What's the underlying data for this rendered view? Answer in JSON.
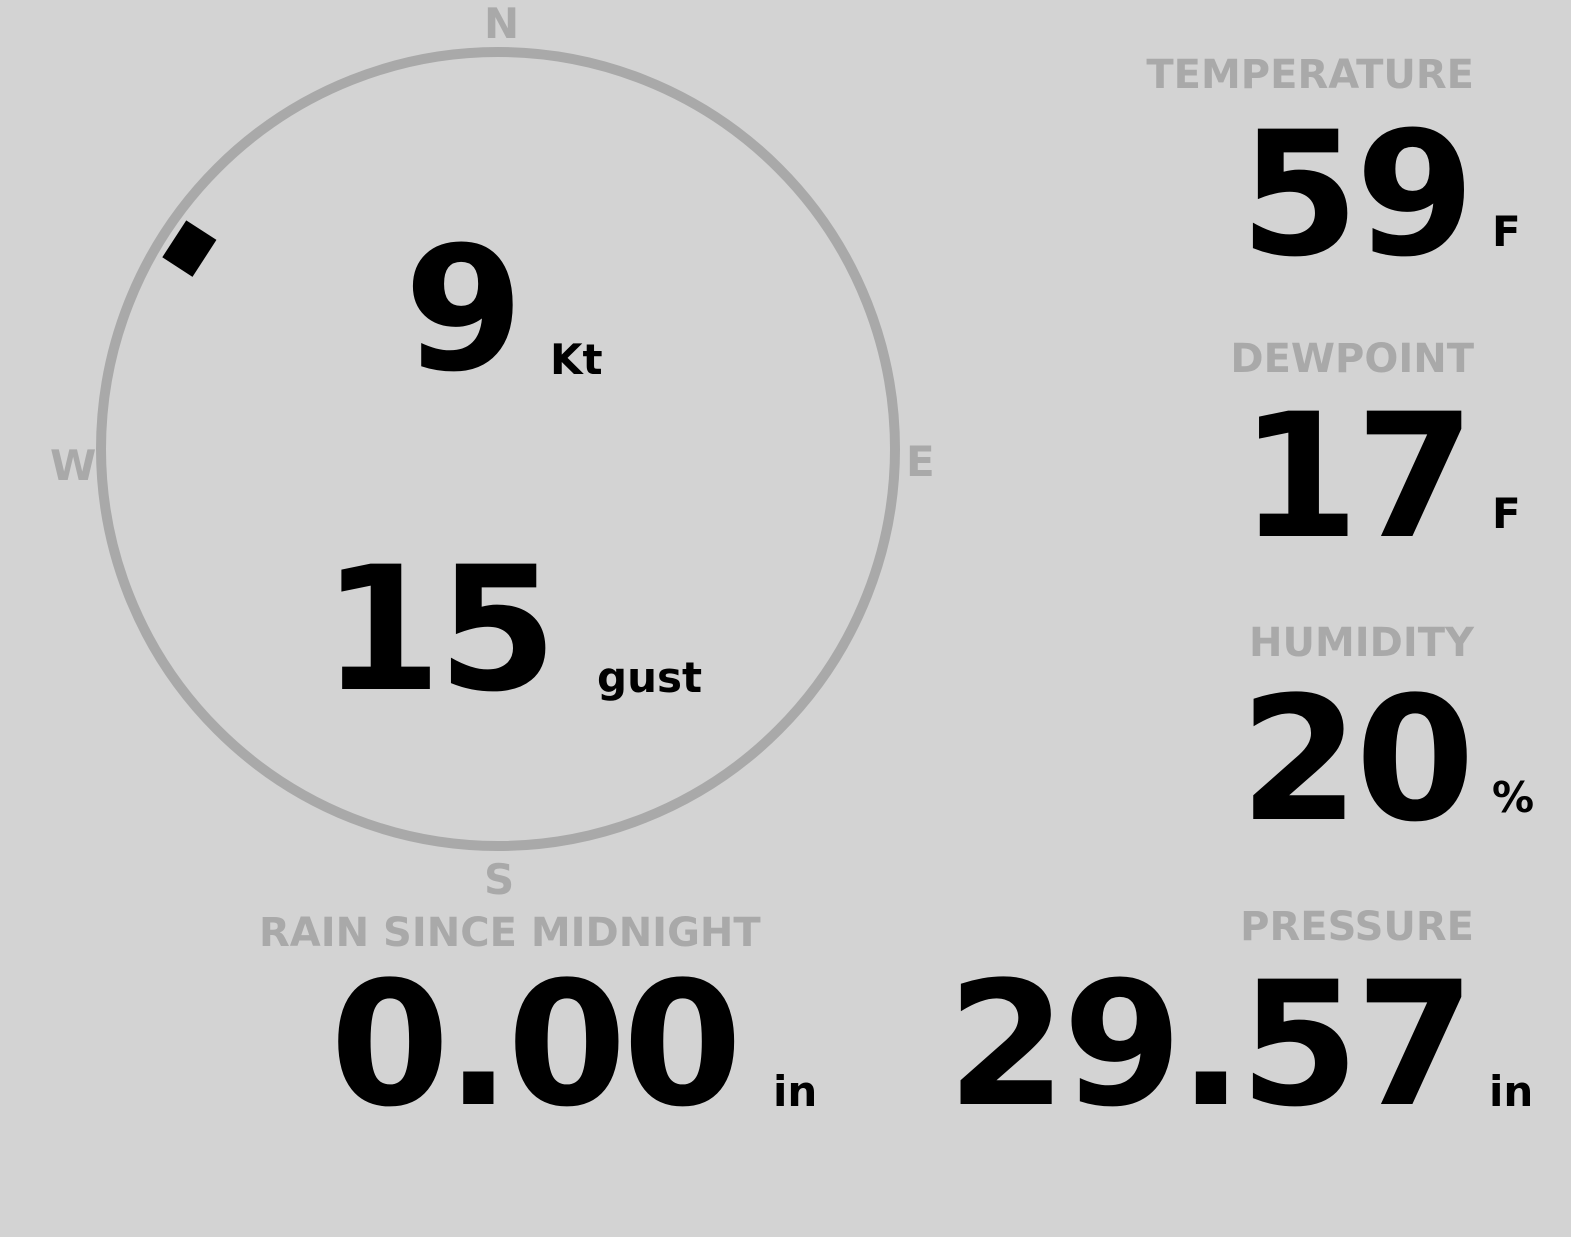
{
  "wind": {
    "compass": {
      "n": "N",
      "e": "E",
      "s": "S",
      "w": "W"
    },
    "direction_deg": 303,
    "speed": "9",
    "speed_unit": "Kt",
    "gust": "15",
    "gust_unit": "gust"
  },
  "temperature": {
    "label": "TEMPERATURE",
    "value": "59",
    "unit": "F"
  },
  "dewpoint": {
    "label": "DEWPOINT",
    "value": "17",
    "unit": "F"
  },
  "humidity": {
    "label": "HUMIDITY",
    "value": "20",
    "unit": "%"
  },
  "rain": {
    "label": "RAIN SINCE MIDNIGHT",
    "value": "0.00",
    "unit": "in"
  },
  "pressure": {
    "label": "PRESSURE",
    "value": "29.57",
    "unit": "in"
  },
  "colors": {
    "background": "#d3d3d3",
    "label": "#a9a9a9",
    "value": "#000000"
  }
}
